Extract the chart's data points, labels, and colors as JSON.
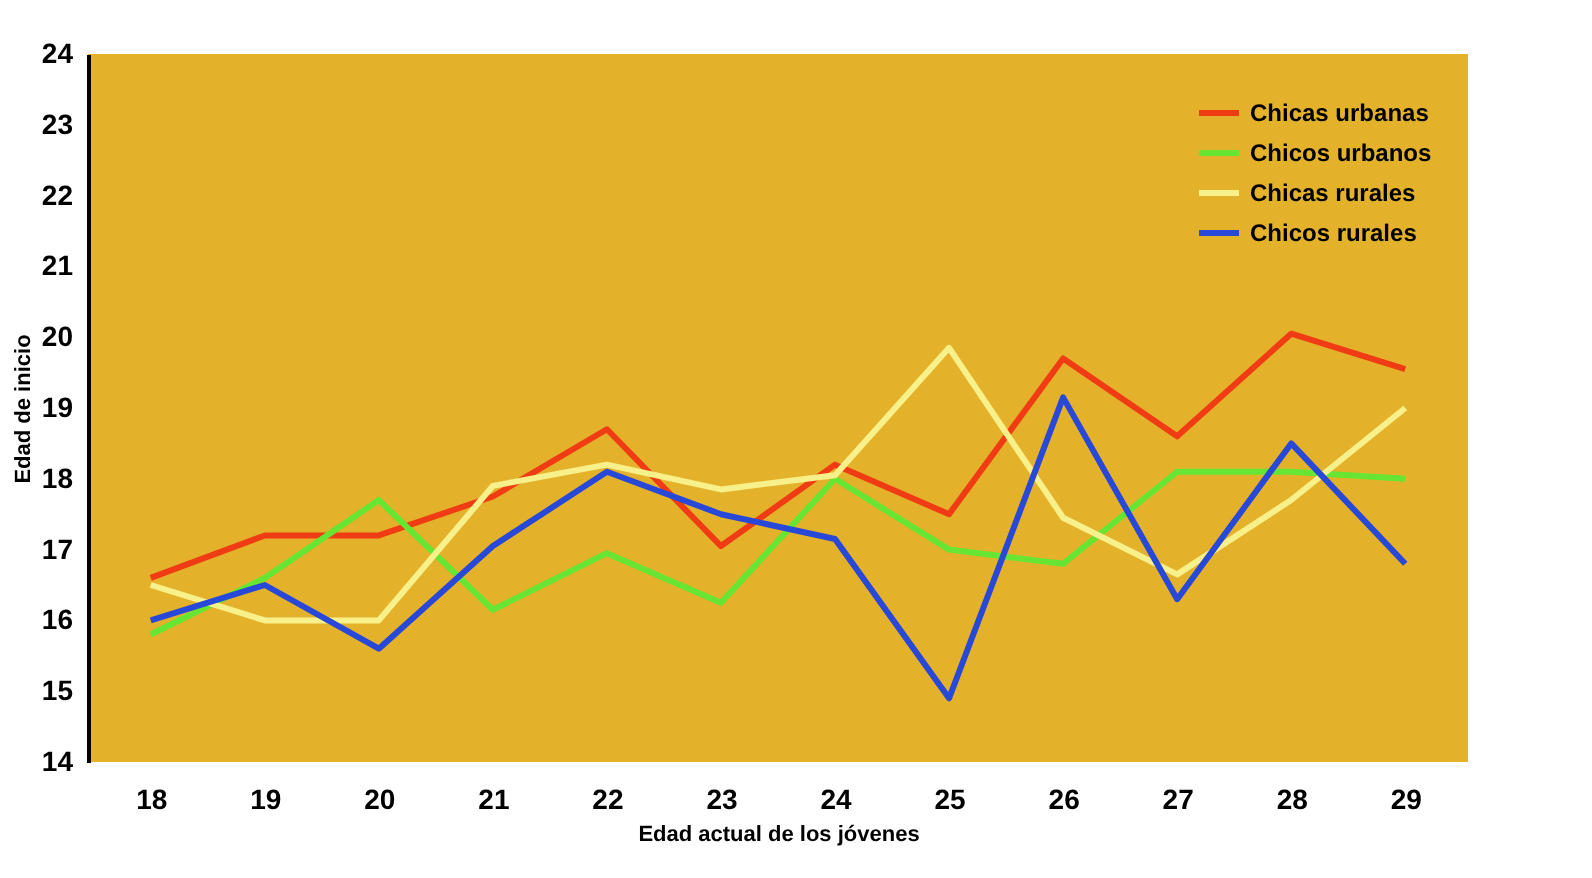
{
  "chart_data": {
    "type": "line",
    "xlabel": "Edad actual de los jóvenes",
    "ylabel": "Edad de inicio",
    "categories": [
      "18",
      "19",
      "20",
      "21",
      "22",
      "23",
      "24",
      "25",
      "26",
      "27",
      "28",
      "29"
    ],
    "series": [
      {
        "name": "Chicas urbanas",
        "color": "#f03c14",
        "values": [
          16.6,
          17.2,
          17.2,
          17.75,
          18.7,
          17.05,
          18.2,
          17.5,
          19.7,
          18.6,
          20.05,
          19.55
        ]
      },
      {
        "name": "Chicos urbanos",
        "color": "#66e632",
        "values": [
          15.8,
          16.6,
          17.7,
          16.15,
          16.95,
          16.25,
          18.0,
          17.0,
          16.8,
          18.1,
          18.1,
          18.0
        ]
      },
      {
        "name": "Chicas rurales",
        "color": "#f8f08a",
        "values": [
          16.5,
          16.0,
          16.0,
          17.9,
          18.2,
          17.85,
          18.05,
          19.85,
          17.45,
          16.65,
          17.7,
          19.0
        ]
      },
      {
        "name": "Chicos rurales",
        "color": "#2848d8",
        "values": [
          16.0,
          16.5,
          15.6,
          17.05,
          18.1,
          17.5,
          17.15,
          14.9,
          19.15,
          16.3,
          18.5,
          16.8
        ]
      }
    ],
    "ylim": [
      14,
      24
    ],
    "yticks": [
      14,
      15,
      16,
      17,
      18,
      19,
      20,
      21,
      22,
      23,
      24
    ],
    "grid": false,
    "legend": "top right",
    "line_style": "solid",
    "marker": "none"
  }
}
